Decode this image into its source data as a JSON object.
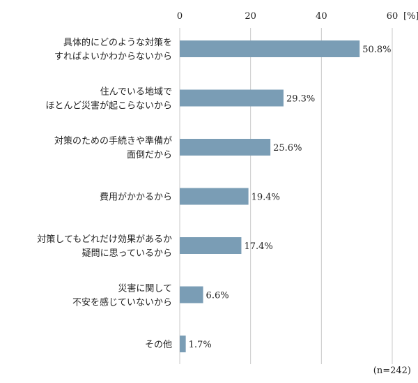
{
  "chart_data": {
    "type": "bar",
    "orientation": "horizontal",
    "categories": [
      [
        "具体的にどのような対策を",
        "すればよいかわからないから"
      ],
      [
        "住んでいる地域で",
        "ほとんど災害が起こらないから"
      ],
      [
        "対策のための手続きや準備が",
        "面倒だから"
      ],
      [
        "費用がかかるから"
      ],
      [
        "対策してもどれだけ効果があるか",
        "疑問に思っているから"
      ],
      [
        "災害に関して",
        "不安を感じていないから"
      ],
      [
        "その他"
      ]
    ],
    "values": [
      50.8,
      29.3,
      25.6,
      19.4,
      17.4,
      6.6,
      1.7
    ],
    "value_labels": [
      "50.8%",
      "29.3%",
      "25.6%",
      "19.4%",
      "17.4%",
      "6.6%",
      "1.7%"
    ],
    "xticks": [
      0,
      20,
      40,
      60
    ],
    "xlim": [
      0,
      60
    ],
    "unit": "[%]",
    "grid": true,
    "bar_color": "#7a9db5",
    "note": "(n=242)"
  }
}
